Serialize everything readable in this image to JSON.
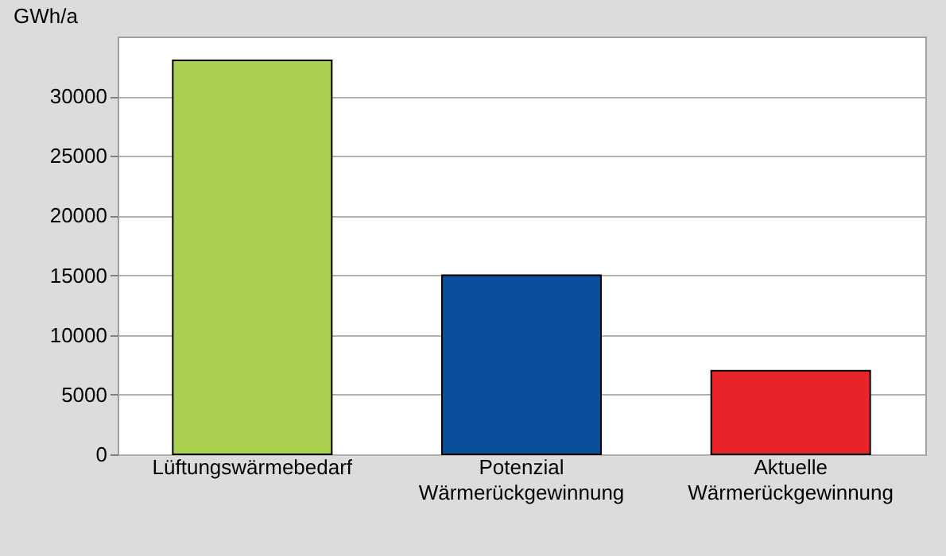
{
  "chart_data": {
    "type": "bar",
    "ylabel": "GWh/a",
    "categories": [
      "Lüftungswärmebedarf",
      "Potenzial Wärmerückgewinnung",
      "Aktuelle Wärmerückgewinnung"
    ],
    "values": [
      33000,
      15000,
      7000
    ],
    "colors": [
      "#a9d04f",
      "#0a4f9c",
      "#e8232a"
    ],
    "ylim": [
      0,
      35000
    ],
    "yticks": [
      0,
      5000,
      10000,
      15000,
      20000,
      25000,
      30000
    ],
    "grid": "y"
  }
}
